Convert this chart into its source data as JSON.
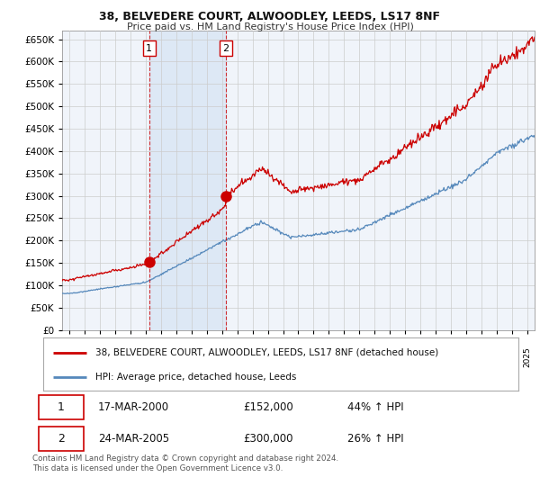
{
  "title1": "38, BELVEDERE COURT, ALWOODLEY, LEEDS, LS17 8NF",
  "title2": "Price paid vs. HM Land Registry's House Price Index (HPI)",
  "ytick_vals": [
    0,
    50000,
    100000,
    150000,
    200000,
    250000,
    300000,
    350000,
    400000,
    450000,
    500000,
    550000,
    600000,
    650000
  ],
  "ylim": [
    0,
    670000
  ],
  "xlim_start": 1994.5,
  "xlim_end": 2025.5,
  "purchase1_x": 2000.21,
  "purchase1_y": 152000,
  "purchase2_x": 2005.23,
  "purchase2_y": 300000,
  "vline1_x": 2000.21,
  "vline2_x": 2005.23,
  "legend_red": "38, BELVEDERE COURT, ALWOODLEY, LEEDS, LS17 8NF (detached house)",
  "legend_blue": "HPI: Average price, detached house, Leeds",
  "table_row1": [
    "1",
    "17-MAR-2000",
    "£152,000",
    "44% ↑ HPI"
  ],
  "table_row2": [
    "2",
    "24-MAR-2005",
    "£300,000",
    "26% ↑ HPI"
  ],
  "footnote": "Contains HM Land Registry data © Crown copyright and database right 2024.\nThis data is licensed under the Open Government Licence v3.0.",
  "red_color": "#cc0000",
  "blue_color": "#5588bb",
  "shade_color": "#dde8f5",
  "grid_color": "#cccccc",
  "background_color": "#ffffff",
  "plot_bg_color": "#f0f4fa"
}
